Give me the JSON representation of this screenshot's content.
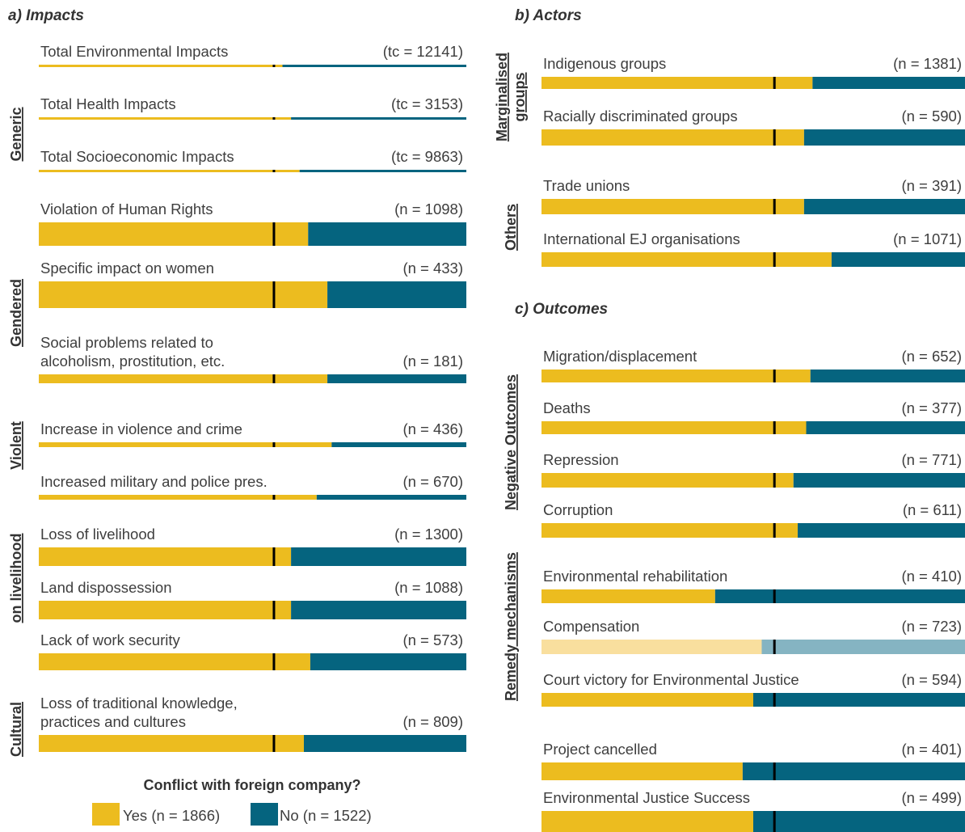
{
  "colors": {
    "yes": "#ECBC1F",
    "no": "#05647F",
    "yes_faded": "#F9DF9E",
    "no_faded": "#85B4C2",
    "marker": "#000000"
  },
  "legend": {
    "title": "Conflict with foreign company?",
    "items": [
      {
        "key": "yes",
        "label": "Yes (n = 1866)"
      },
      {
        "key": "no",
        "label": "No (n = 1522)"
      }
    ]
  },
  "chart_data": [
    {
      "type": "bar",
      "orientation": "horizontal-stacked-100",
      "title": "a) Impacts",
      "series": [
        {
          "name": "Yes (n = 1866)"
        },
        {
          "name": "No (n = 1522)"
        }
      ],
      "reference_line": 0.55,
      "groups": [
        {
          "label": "Generic",
          "bars": [
            {
              "label": "Total Environmental Impacts",
              "count": "(tc = 12141)",
              "yes": 0.57
            },
            {
              "label": "Total Health Impacts",
              "count": "(tc = 3153)",
              "yes": 0.59
            },
            {
              "label": "Total Socioeconomic Impacts",
              "count": "(tc = 9863)",
              "yes": 0.61
            },
            {
              "label": "Violation of Human Rights",
              "count": "(n = 1098)",
              "yes": 0.63
            }
          ]
        },
        {
          "label": "Gendered",
          "bars": [
            {
              "label": "Specific impact on women",
              "count": "(n = 433)",
              "yes": 0.675
            },
            {
              "label": [
                "Social problems related to",
                "alcoholism, prostitution, etc."
              ],
              "count": "(n = 181)",
              "yes": 0.675
            }
          ]
        },
        {
          "label": "Violent",
          "bars": [
            {
              "label": "Increase in violence and crime",
              "count": "(n = 436)",
              "yes": 0.685
            },
            {
              "label": "Increased military and police pres.",
              "count": "(n = 670)",
              "yes": 0.65
            }
          ]
        },
        {
          "label": "on livelihood",
          "bars": [
            {
              "label": "Loss of livelihood",
              "count": "(n = 1300)",
              "yes": 0.59
            },
            {
              "label": "Land dispossession",
              "count": "(n = 1088)",
              "yes": 0.59
            },
            {
              "label": "Lack of work security",
              "count": "(n = 573)",
              "yes": 0.635
            }
          ]
        },
        {
          "label": "Cultural",
          "bars": [
            {
              "label": [
                "Loss of traditional knowledge,",
                "practices and cultures"
              ],
              "count": "(n = 809)",
              "yes": 0.62
            }
          ]
        }
      ]
    },
    {
      "type": "bar",
      "orientation": "horizontal-stacked-100",
      "title": "b) Actors",
      "series": [
        {
          "name": "Yes (n = 1866)"
        },
        {
          "name": "No (n = 1522)"
        }
      ],
      "reference_line": 0.55,
      "groups": [
        {
          "label": [
            "Marginalised",
            "groups"
          ],
          "bars": [
            {
              "label": "Indigenous groups",
              "count": "(n = 1381)",
              "yes": 0.64
            },
            {
              "label": "Racially discriminated groups",
              "count": "(n = 590)",
              "yes": 0.62
            }
          ]
        },
        {
          "label": "Others",
          "bars": [
            {
              "label": "Trade unions",
              "count": "(n = 391)",
              "yes": 0.62
            },
            {
              "label": "International EJ organisations",
              "count": "(n = 1071)",
              "yes": 0.685
            }
          ]
        }
      ]
    },
    {
      "type": "bar",
      "orientation": "horizontal-stacked-100",
      "title": "c) Outcomes",
      "series": [
        {
          "name": "Yes (n = 1866)"
        },
        {
          "name": "No (n = 1522)"
        }
      ],
      "reference_line": 0.55,
      "groups": [
        {
          "label": "Negative Outcomes",
          "bars": [
            {
              "label": "Migration/displacement",
              "count": "(n = 652)",
              "yes": 0.635
            },
            {
              "label": "Deaths",
              "count": "(n = 377)",
              "yes": 0.625
            },
            {
              "label": "Repression",
              "count": "(n = 771)",
              "yes": 0.595
            },
            {
              "label": "Corruption",
              "count": "(n = 611)",
              "yes": 0.605
            }
          ]
        },
        {
          "label": "Remedy mechanisms",
          "bars": [
            {
              "label": "Environmental rehabilitation",
              "count": "(n = 410)",
              "yes": 0.41
            },
            {
              "label": "Compensation",
              "count": "(n = 723)",
              "yes": 0.52,
              "faded": true
            },
            {
              "label": "Court victory for Environmental Justice",
              "count": "(n = 594)",
              "yes": 0.5
            }
          ]
        },
        {
          "label": "",
          "bars": [
            {
              "label": "Project cancelled",
              "count": "(n = 401)",
              "yes": 0.475
            },
            {
              "label": "Environmental Justice Success",
              "count": "(n = 499)",
              "yes": 0.5
            }
          ]
        }
      ]
    }
  ]
}
